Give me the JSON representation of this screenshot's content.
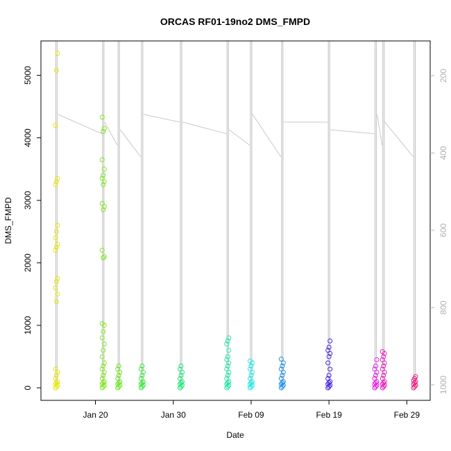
{
  "chart_data": {
    "type": "scatter",
    "title": "ORCAS RF01-19no2 DMS_FMPD",
    "xlabel": "Date",
    "ylabel": "DMS_FMPD",
    "x_tick_labels": [
      "Jan 20",
      "Jan 30",
      "Feb 09",
      "Feb 19",
      "Feb 29"
    ],
    "x_tick_dates": [
      "2016-01-20",
      "2016-01-30",
      "2016-02-09",
      "2016-02-19",
      "2016-02-29"
    ],
    "xlim": [
      "2016-01-13",
      "2016-03-03"
    ],
    "ylim": [
      -200,
      5550
    ],
    "y_ticks": [
      0,
      1000,
      2000,
      3000,
      4000,
      5000
    ],
    "right_axis": {
      "ticks": [
        200,
        400,
        600,
        800,
        1000
      ],
      "range_top_to_bottom": [
        110,
        1040
      ],
      "color": "#b0b0b0"
    },
    "flights": [
      {
        "date": "2016-01-15",
        "color": "#e6e600",
        "dms_values": [
          0,
          20,
          40,
          60,
          80,
          100,
          150,
          200,
          250,
          300,
          1380,
          1500,
          1600,
          1700,
          1750,
          2200,
          2250,
          2300,
          2400,
          2500,
          2600,
          3250,
          3300,
          3350,
          4200,
          5080,
          5350
        ]
      },
      {
        "date": "2016-01-21",
        "color": "#80e620",
        "dms_values": [
          0,
          20,
          40,
          60,
          80,
          100,
          150,
          200,
          250,
          300,
          350,
          400,
          500,
          600,
          700,
          800,
          900,
          1000,
          1030,
          2080,
          2100,
          2200,
          2850,
          2900,
          2950,
          3250,
          3300,
          3350,
          3400,
          3500,
          3650,
          4100,
          4150,
          4330
        ]
      },
      {
        "date": "2016-01-23",
        "color": "#6ee620",
        "dms_values": [
          0,
          20,
          40,
          60,
          80,
          100,
          150,
          200,
          250,
          300,
          350
        ]
      },
      {
        "date": "2016-01-26",
        "color": "#40e640",
        "dms_values": [
          0,
          20,
          40,
          60,
          80,
          100,
          150,
          200,
          250,
          300,
          350
        ]
      },
      {
        "date": "2016-01-31",
        "color": "#20e67a",
        "dms_values": [
          0,
          20,
          40,
          60,
          80,
          100,
          150,
          200,
          250,
          300,
          350
        ]
      },
      {
        "date": "2016-02-06",
        "color": "#20e6a6",
        "dms_values": [
          0,
          20,
          40,
          60,
          80,
          100,
          150,
          200,
          250,
          300,
          350,
          400,
          450,
          500,
          600,
          700,
          750,
          800
        ]
      },
      {
        "date": "2016-02-09",
        "color": "#20e6e6",
        "dms_values": [
          0,
          20,
          40,
          60,
          80,
          100,
          150,
          200,
          250,
          300,
          350,
          400,
          430
        ]
      },
      {
        "date": "2016-02-13",
        "color": "#2090e6",
        "dms_values": [
          0,
          20,
          40,
          60,
          80,
          100,
          150,
          200,
          250,
          300,
          350,
          400,
          460
        ]
      },
      {
        "date": "2016-02-19",
        "color": "#4020e6",
        "dms_values": [
          0,
          20,
          40,
          60,
          80,
          100,
          150,
          200,
          300,
          400,
          500,
          550,
          600,
          650,
          750
        ]
      },
      {
        "date": "2016-02-25",
        "color": "#e620e6",
        "dms_values": [
          0,
          20,
          40,
          60,
          80,
          100,
          150,
          200,
          250,
          300,
          350,
          450
        ]
      },
      {
        "date": "2016-02-26",
        "color": "#e620c0",
        "dms_values": [
          0,
          20,
          40,
          60,
          80,
          100,
          150,
          200,
          250,
          300,
          350,
          400,
          450,
          500,
          550,
          580
        ]
      },
      {
        "date": "2016-03-01",
        "color": "#e62080",
        "dms_values": [
          0,
          20,
          40,
          60,
          80,
          100,
          120,
          150,
          180
        ]
      }
    ],
    "trace_color": "#c8c8c8"
  }
}
